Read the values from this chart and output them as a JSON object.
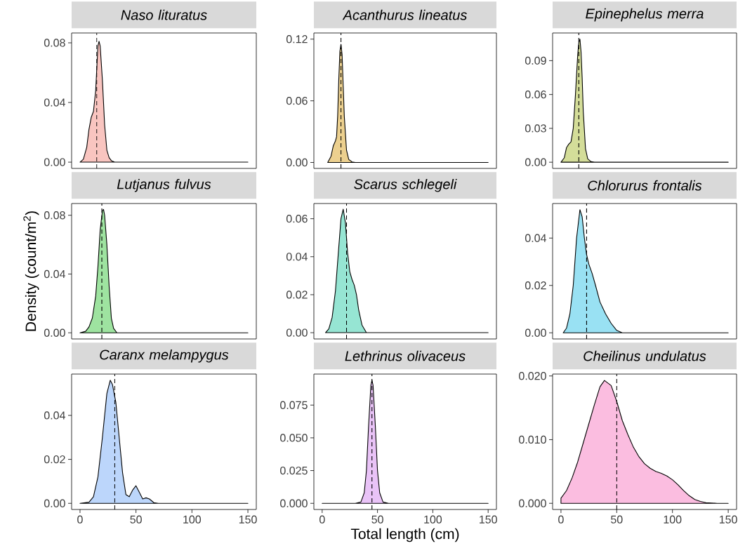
{
  "chart_data": [
    {
      "type": "area",
      "title": "Naso lituratus",
      "color": "#f9c5c0",
      "x": [
        0,
        3,
        6,
        8,
        10,
        12,
        14,
        16,
        17,
        18,
        20,
        22,
        24,
        26,
        28,
        31,
        35,
        150
      ],
      "values": [
        0,
        0.002,
        0.01,
        0.022,
        0.03,
        0.034,
        0.048,
        0.078,
        0.081,
        0.078,
        0.055,
        0.025,
        0.008,
        0.003,
        0.001,
        0,
        0,
        0
      ],
      "xlim": [
        -7.5,
        157.5
      ],
      "ylim": [
        -0.0042,
        0.0866
      ],
      "xticks": [
        0,
        50,
        100,
        150
      ],
      "yticks": [
        {
          "value": 0,
          "label": "0.00"
        },
        0.04,
        0.08
      ],
      "tick_labels": "y",
      "ref_lines": [
        {
          "axis": "x",
          "value": 15,
          "line_style": "dashed"
        }
      ]
    },
    {
      "type": "area",
      "title": "Acanthurus lineatus",
      "color": "#ecd08f",
      "x": [
        5,
        8,
        10,
        12,
        13,
        14,
        15,
        16,
        17,
        18,
        19,
        20,
        22,
        24,
        27,
        30,
        150
      ],
      "values": [
        0,
        0.006,
        0.016,
        0.021,
        0.025,
        0.045,
        0.08,
        0.108,
        0.115,
        0.105,
        0.075,
        0.045,
        0.012,
        0.003,
        0.0005,
        0,
        0
      ],
      "xlim": [
        -7.5,
        157.5
      ],
      "ylim": [
        -0.0058,
        0.126
      ],
      "xticks": [
        0,
        50,
        100,
        150
      ],
      "yticks": [
        {
          "value": 0,
          "label": "0.00"
        },
        0.06,
        0.12
      ],
      "tick_labels": "y",
      "ref_lines": [
        {
          "axis": "x",
          "value": 17,
          "line_style": "dashed"
        }
      ]
    },
    {
      "type": "area",
      "title": "Epinephelus merra",
      "color": "#d4dd99",
      "x": [
        0,
        3,
        5,
        7,
        9,
        11,
        13,
        15,
        16,
        17,
        18,
        19,
        20,
        22,
        24,
        27,
        30,
        150
      ],
      "values": [
        0,
        0.004,
        0.013,
        0.016,
        0.018,
        0.03,
        0.06,
        0.095,
        0.106,
        0.109,
        0.098,
        0.075,
        0.045,
        0.012,
        0.003,
        0.0005,
        0,
        0
      ],
      "xlim": [
        -7.5,
        157.5
      ],
      "ylim": [
        -0.0055,
        0.1145
      ],
      "xticks": [
        0,
        50,
        100,
        150
      ],
      "yticks": [
        {
          "value": 0,
          "label": "0.00"
        },
        0.03,
        0.06,
        0.09
      ],
      "tick_labels": "y",
      "ref_lines": [
        {
          "axis": "x",
          "value": 16,
          "line_style": "dashed"
        }
      ]
    },
    {
      "type": "area",
      "title": "Lutjanus fulvus",
      "ylabel": "Density (count/m$^{2}$)",
      "color": "#9ee3a0",
      "x": [
        0,
        5,
        8,
        11,
        14,
        16,
        18,
        20,
        21,
        22,
        24,
        26,
        28,
        30,
        33,
        150
      ],
      "values": [
        0,
        0.001,
        0.004,
        0.01,
        0.025,
        0.045,
        0.07,
        0.083,
        0.084,
        0.08,
        0.06,
        0.032,
        0.01,
        0.003,
        0,
        0
      ],
      "xlim": [
        -7.5,
        157.5
      ],
      "ylim": [
        -0.0042,
        0.088
      ],
      "xticks": [
        0,
        50,
        100,
        150
      ],
      "yticks": [
        {
          "value": 0,
          "label": "0.00"
        },
        0.04,
        0.08
      ],
      "tick_labels": "y",
      "ref_lines": [
        {
          "axis": "x",
          "value": 19.5,
          "line_style": "dashed"
        }
      ]
    },
    {
      "type": "area",
      "title": "Scarus schlegeli",
      "color": "#96e5d3",
      "x": [
        3,
        6,
        9,
        12,
        15,
        17,
        19,
        21,
        23,
        25,
        27,
        29,
        31,
        33,
        36,
        40,
        150
      ],
      "values": [
        0,
        0.002,
        0.008,
        0.022,
        0.045,
        0.06,
        0.065,
        0.058,
        0.042,
        0.032,
        0.028,
        0.025,
        0.02,
        0.012,
        0.004,
        0,
        0
      ],
      "xlim": [
        -7.5,
        157.5
      ],
      "ylim": [
        -0.0033,
        0.068
      ],
      "xticks": [
        0,
        50,
        100,
        150
      ],
      "yticks": [
        {
          "value": 0,
          "label": "0.00"
        },
        0.02,
        0.04,
        0.06
      ],
      "tick_labels": "y",
      "ref_lines": [
        {
          "axis": "x",
          "value": 22,
          "line_style": "dashed"
        }
      ]
    },
    {
      "type": "area",
      "title": "Chlorurus frontalis",
      "color": "#99e1f3",
      "x": [
        2,
        5,
        8,
        11,
        14,
        17,
        19,
        21,
        23,
        25,
        28,
        31,
        35,
        40,
        45,
        50,
        55,
        150
      ],
      "values": [
        0,
        0.002,
        0.008,
        0.02,
        0.04,
        0.052,
        0.049,
        0.04,
        0.033,
        0.029,
        0.025,
        0.02,
        0.013,
        0.008,
        0.004,
        0.001,
        0,
        0
      ],
      "xlim": [
        -7.5,
        157.5
      ],
      "ylim": [
        -0.0026,
        0.0546
      ],
      "xticks": [
        0,
        50,
        100,
        150
      ],
      "yticks": [
        {
          "value": 0,
          "label": "0.00"
        },
        0.02,
        0.04
      ],
      "tick_labels": "y",
      "ref_lines": [
        {
          "axis": "x",
          "value": 23,
          "line_style": "dashed"
        }
      ]
    },
    {
      "type": "area",
      "title": "Caranx melampygus",
      "color": "#bcd6fb",
      "x": [
        0,
        8,
        12,
        16,
        20,
        24,
        27,
        29,
        32,
        35,
        38,
        41,
        44,
        47,
        50,
        53,
        56,
        59,
        62,
        66,
        70,
        150
      ],
      "values": [
        0,
        0.0005,
        0.003,
        0.012,
        0.03,
        0.05,
        0.056,
        0.054,
        0.046,
        0.03,
        0.014,
        0.004,
        0.003,
        0.006,
        0.008,
        0.005,
        0.002,
        0.0025,
        0.002,
        0.0003,
        0,
        0
      ],
      "xlim": [
        -7.5,
        157.5
      ],
      "ylim": [
        -0.0028,
        0.0588
      ],
      "xticks": [
        0,
        50,
        100,
        150
      ],
      "yticks": [
        {
          "value": 0,
          "label": "0.00"
        },
        0.02,
        0.04
      ],
      "ref_lines": [
        {
          "axis": "x",
          "value": 31,
          "line_style": "dashed"
        }
      ]
    },
    {
      "type": "area",
      "title": "Lethrinus olivaceus",
      "xlabel": "Total length (cm)",
      "color": "#e9c3f7",
      "x": [
        0,
        30,
        35,
        38,
        40,
        42,
        44,
        45,
        46,
        48,
        50,
        52,
        55,
        60,
        150
      ],
      "values": [
        0,
        0,
        0.001,
        0.008,
        0.025,
        0.06,
        0.09,
        0.094,
        0.09,
        0.06,
        0.025,
        0.008,
        0.001,
        0,
        0
      ],
      "xlim": [
        -7.5,
        157.5
      ],
      "ylim": [
        -0.0047,
        0.0987
      ],
      "xticks": [
        0,
        50,
        100,
        150
      ],
      "yticks": [
        {
          "value": 0,
          "label": "0.000"
        },
        {
          "value": 0.025,
          "label": "0.025"
        },
        {
          "value": 0.05,
          "label": "0.050"
        },
        {
          "value": 0.075,
          "label": "0.075"
        }
      ],
      "ref_lines": [
        {
          "axis": "x",
          "value": 45,
          "line_style": "dashed"
        }
      ]
    },
    {
      "type": "area",
      "title": "Cheilinus undulatus",
      "color": "#fbbde0",
      "x": [
        0,
        5,
        10,
        15,
        20,
        25,
        30,
        35,
        39,
        45,
        50,
        55,
        60,
        65,
        70,
        75,
        80,
        85,
        90,
        95,
        100,
        105,
        110,
        115,
        120,
        125,
        130,
        140,
        150
      ],
      "values": [
        0.0008,
        0.002,
        0.004,
        0.0065,
        0.0095,
        0.0125,
        0.0155,
        0.0183,
        0.0193,
        0.0185,
        0.016,
        0.013,
        0.0108,
        0.0088,
        0.0073,
        0.0062,
        0.0055,
        0.005,
        0.0047,
        0.0043,
        0.0037,
        0.0029,
        0.002,
        0.0012,
        0.0006,
        0.0003,
        0.0001,
        0,
        0
      ],
      "xlim": [
        -7.5,
        157.5
      ],
      "ylim": [
        -0.00097,
        0.0203
      ],
      "xticks": [
        0,
        50,
        100,
        150
      ],
      "yticks": [
        {
          "value": 0,
          "label": "0.000"
        },
        {
          "value": 0.01,
          "label": "0.010"
        },
        {
          "value": 0.02,
          "label": "0.020"
        }
      ],
      "ref_lines": [
        {
          "axis": "x",
          "value": 50,
          "line_style": "dashed"
        }
      ]
    }
  ]
}
